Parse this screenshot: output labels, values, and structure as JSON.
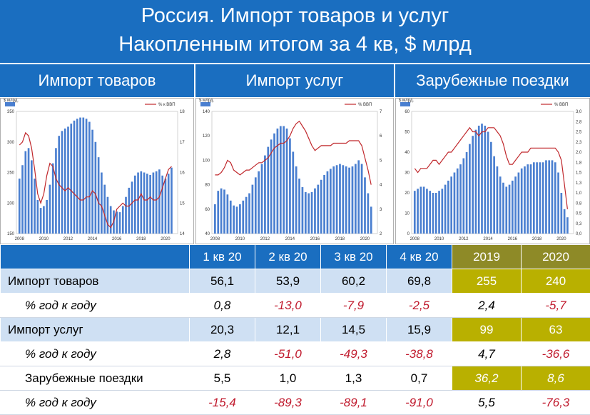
{
  "header": {
    "title_line1": "Россия. Импорт товаров и услуг",
    "title_line2": "Накопленным итогом за 4 кв, $ млрд"
  },
  "panels": [
    {
      "title": "Импорт товаров"
    },
    {
      "title": "Импорт услуг"
    },
    {
      "title": "Зарубежные поездки"
    }
  ],
  "chart_data": [
    {
      "type": "bar",
      "title": "Импорт товаров",
      "legend": {
        "left": "$ млрд.",
        "right": "% к ВВП",
        "placement": "top"
      },
      "colors": {
        "bars": "#4a7fd0",
        "line": "#c0282c"
      },
      "x_ticks": [
        "2008",
        "2010",
        "2012",
        "2014",
        "2016",
        "2018",
        "2020"
      ],
      "x_range": [
        2007.75,
        2021.0
      ],
      "ylim_left": [
        150,
        350
      ],
      "yticks_left": [
        "150",
        "200",
        "250",
        "300",
        "350"
      ],
      "ylim_right": [
        14,
        18
      ],
      "yticks_right": [
        "14",
        "15",
        "16",
        "17",
        "18"
      ],
      "series": [
        {
          "name": "$ млрд.",
          "axis": "left",
          "start": 2008.0,
          "step": 0.25,
          "values": [
            240,
            262,
            285,
            290,
            270,
            240,
            205,
            192,
            195,
            205,
            230,
            265,
            290,
            310,
            318,
            322,
            325,
            330,
            335,
            338,
            340,
            340,
            338,
            333,
            320,
            300,
            275,
            250,
            230,
            210,
            195,
            188,
            186,
            185,
            195,
            210,
            225,
            235,
            245,
            250,
            252,
            250,
            248,
            246,
            250,
            252,
            255,
            245,
            240,
            248,
            258
          ]
        },
        {
          "name": "% к ВВП",
          "axis": "right",
          "start": 2008.0,
          "step": 0.25,
          "values": [
            16.9,
            17.0,
            17.3,
            17.2,
            16.8,
            16.1,
            15.3,
            15.0,
            15.3,
            15.9,
            16.3,
            16.2,
            15.8,
            15.6,
            15.5,
            15.4,
            15.5,
            15.4,
            15.3,
            15.2,
            15.1,
            15.1,
            15.2,
            15.2,
            15.4,
            15.3,
            15.0,
            14.9,
            14.6,
            14.3,
            14.2,
            14.4,
            14.8,
            14.9,
            15.0,
            14.9,
            14.9,
            15.0,
            15.1,
            15.1,
            15.3,
            15.1,
            15.1,
            15.2,
            15.1,
            15.1,
            15.2,
            15.5,
            15.8,
            16.1,
            16.2
          ]
        }
      ]
    },
    {
      "type": "bar",
      "title": "Импорт услуг",
      "legend": {
        "left": "$ млрд.",
        "right": "% ВВП",
        "placement": "top"
      },
      "colors": {
        "bars": "#4a7fd0",
        "line": "#c0282c"
      },
      "x_ticks": [
        "2008",
        "2010",
        "2012",
        "2014",
        "2016",
        "2018",
        "2020"
      ],
      "x_range": [
        2007.75,
        2021.0
      ],
      "ylim_left": [
        40,
        140
      ],
      "yticks_left": [
        "40",
        "60",
        "80",
        "100",
        "120",
        "140"
      ],
      "ylim_right": [
        2,
        7
      ],
      "yticks_right": [
        "2",
        "3",
        "4",
        "5",
        "6",
        "7"
      ],
      "series": [
        {
          "name": "$ млрд.",
          "axis": "left",
          "start": 2008.0,
          "step": 0.25,
          "values": [
            64,
            75,
            77,
            76,
            72,
            67,
            63,
            62,
            64,
            67,
            70,
            73,
            80,
            86,
            91,
            97,
            104,
            111,
            117,
            122,
            126,
            128,
            128,
            126,
            118,
            107,
            95,
            85,
            78,
            74,
            73,
            74,
            77,
            80,
            84,
            88,
            91,
            93,
            95,
            96,
            97,
            96,
            95,
            94,
            95,
            97,
            100,
            97,
            86,
            73,
            62
          ]
        },
        {
          "name": "% ВВП",
          "axis": "right",
          "start": 2008.0,
          "step": 0.25,
          "values": [
            4.4,
            4.4,
            4.5,
            4.7,
            5.0,
            4.9,
            4.6,
            4.5,
            4.4,
            4.5,
            4.6,
            4.6,
            4.7,
            4.8,
            4.9,
            4.9,
            5.0,
            5.1,
            5.3,
            5.5,
            5.6,
            5.7,
            5.7,
            5.8,
            6.0,
            6.3,
            6.5,
            6.6,
            6.4,
            6.2,
            5.9,
            5.6,
            5.4,
            5.5,
            5.6,
            5.6,
            5.6,
            5.6,
            5.7,
            5.7,
            5.7,
            5.7,
            5.7,
            5.8,
            5.8,
            5.8,
            5.8,
            5.6,
            5.1,
            4.6,
            4.0
          ]
        }
      ]
    },
    {
      "type": "bar",
      "title": "Зарубежные поездки",
      "legend": {
        "left": "$ млрд.",
        "right": "% ВВП",
        "placement": "top"
      },
      "colors": {
        "bars": "#4a7fd0",
        "line": "#c0282c"
      },
      "x_ticks": [
        "2008",
        "2010",
        "2012",
        "2014",
        "2016",
        "2018",
        "2020"
      ],
      "x_range": [
        2007.75,
        2021.0
      ],
      "ylim_left": [
        0,
        60
      ],
      "yticks_left": [
        "0",
        "10",
        "20",
        "30",
        "40",
        "50",
        "60"
      ],
      "ylim_right": [
        0.0,
        3.0
      ],
      "yticks_right": [
        "0,0",
        "0,3",
        "0,5",
        "0,8",
        "1,0",
        "1,3",
        "1,5",
        "1,8",
        "2,0",
        "2,3",
        "2,5",
        "2,8",
        "3,0"
      ],
      "series": [
        {
          "name": "$ млрд.",
          "axis": "left",
          "start": 2008.0,
          "step": 0.25,
          "values": [
            21,
            22,
            23,
            23,
            22,
            21,
            20,
            20,
            21,
            22,
            24,
            26,
            28,
            30,
            32,
            34,
            37,
            40,
            44,
            48,
            51,
            53,
            54,
            53,
            50,
            45,
            38,
            33,
            28,
            25,
            23,
            24,
            26,
            28,
            30,
            32,
            33,
            34,
            34,
            35,
            35,
            35,
            35,
            36,
            36,
            36,
            35,
            30,
            20,
            12,
            8
          ]
        },
        {
          "name": "% ВВП",
          "axis": "right",
          "start": 2008.0,
          "step": 0.25,
          "values": [
            1.6,
            1.5,
            1.6,
            1.6,
            1.6,
            1.7,
            1.8,
            1.8,
            1.7,
            1.8,
            1.9,
            2.0,
            2.0,
            2.1,
            2.2,
            2.3,
            2.4,
            2.5,
            2.6,
            2.5,
            2.5,
            2.4,
            2.5,
            2.5,
            2.6,
            2.6,
            2.6,
            2.5,
            2.4,
            2.2,
            1.9,
            1.7,
            1.7,
            1.8,
            1.9,
            2.0,
            2.0,
            2.0,
            2.1,
            2.1,
            2.1,
            2.1,
            2.1,
            2.1,
            2.1,
            2.1,
            2.1,
            2.0,
            1.8,
            1.2,
            0.6
          ]
        }
      ]
    }
  ],
  "table": {
    "headers": [
      "1 кв 20",
      "2 кв 20",
      "3 кв 20",
      "4 кв 20",
      "2019",
      "2020"
    ],
    "rows": [
      {
        "label": "Импорт товаров",
        "values": [
          "56,1",
          "53,9",
          "60,2",
          "69,8",
          "255",
          "240"
        ]
      },
      {
        "label": "% год к году",
        "values": [
          "0,8",
          "-13,0",
          "-7,9",
          "-2,5",
          "2,4",
          "-5,7"
        ]
      },
      {
        "label": "Импорт услуг",
        "values": [
          "20,3",
          "12,1",
          "14,5",
          "15,9",
          "99",
          "63"
        ]
      },
      {
        "label": "% год к году",
        "values": [
          "2,8",
          "-51,0",
          "-49,3",
          "-38,8",
          "4,7",
          "-36,6"
        ]
      },
      {
        "label": "Зарубежные поездки",
        "values": [
          "5,5",
          "1,0",
          "1,3",
          "0,7",
          "36,2",
          "8,6"
        ]
      },
      {
        "label": "% год к году",
        "values": [
          "-15,4",
          "-89,3",
          "-89,1",
          "-91,0",
          "5,5",
          "-76,3"
        ]
      }
    ]
  }
}
